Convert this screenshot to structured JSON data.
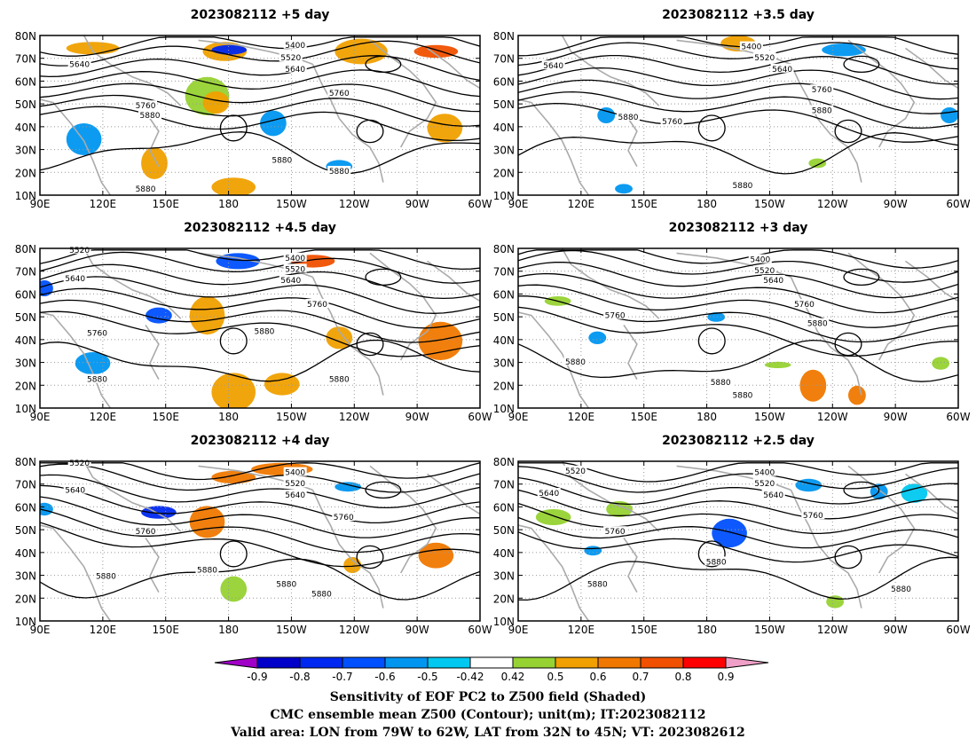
{
  "chart_data": {
    "type": "map",
    "panels": [
      {
        "title": "2023082112  +5 day",
        "contour_labels": [
          "5400",
          "5520",
          "5640",
          "5640",
          "5760",
          "5760",
          "5880",
          "5880",
          "5880",
          "5880"
        ]
      },
      {
        "title": "2023082112  +3.5 day",
        "contour_labels": [
          "5400",
          "5520",
          "5640",
          "5640",
          "5760",
          "5760",
          "5880",
          "5880",
          "5880"
        ]
      },
      {
        "title": "2023082112  +4.5 day",
        "contour_labels": [
          "5520",
          "5400",
          "5520",
          "5640",
          "5640",
          "5760",
          "5760",
          "5880",
          "5880",
          "5880"
        ]
      },
      {
        "title": "2023082112  +3 day",
        "contour_labels": [
          "5400",
          "5520",
          "5640",
          "5760",
          "5760",
          "5880",
          "5880",
          "5880",
          "5880"
        ]
      },
      {
        "title": "2023082112  +4 day",
        "contour_labels": [
          "5520",
          "5400",
          "5520",
          "5640",
          "5640",
          "5760",
          "5760",
          "5880",
          "5880",
          "5880",
          "5880"
        ]
      },
      {
        "title": "2023082112  +2.5 day",
        "contour_labels": [
          "5520",
          "5400",
          "5520",
          "5640",
          "5640",
          "5760",
          "5760",
          "5880",
          "5880",
          "5880"
        ]
      }
    ],
    "lat_ticks": [
      "80N",
      "70N",
      "60N",
      "50N",
      "40N",
      "30N",
      "20N",
      "10N"
    ],
    "lon_ticks": [
      "90E",
      "120E",
      "150E",
      "180",
      "150W",
      "120W",
      "90W",
      "60W"
    ],
    "lon_range": [
      90,
      300
    ],
    "lat_range": [
      10,
      80
    ],
    "colorbar": {
      "labels": [
        "-0.9",
        "-0.8",
        "-0.7",
        "-0.6",
        "-0.5",
        "-0.42",
        "0.42",
        "0.5",
        "0.6",
        "0.7",
        "0.8",
        "0.9"
      ],
      "colors": [
        "#a000c8",
        "#0000c8",
        "#0028f0",
        "#0050ff",
        "#0096f0",
        "#00c8f0",
        "#ffffff",
        "#96d232",
        "#f0a000",
        "#f07800",
        "#f05000",
        "#ff0000",
        "#f0a0c8"
      ]
    },
    "caption": [
      "Sensitivity of EOF PC2 to Z500 field (Shaded)",
      "CMC ensemble mean Z500 (Contour); unit(m); IT:2023082112",
      "Valid area: LON from 79W to 62W, LAT from 32N to 45N; VT: 2023082612"
    ]
  }
}
